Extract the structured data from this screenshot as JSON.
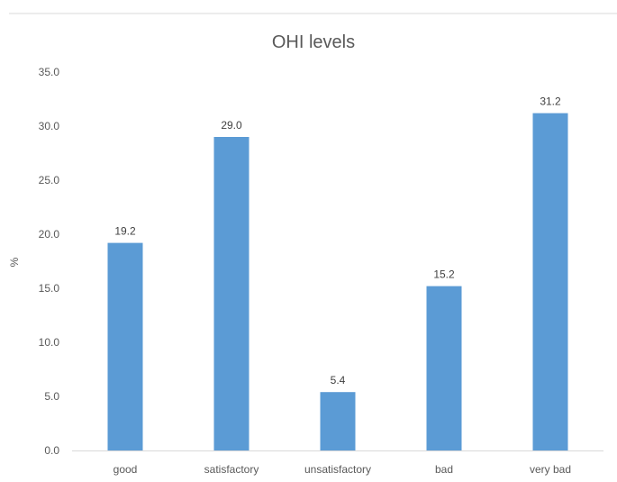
{
  "chart_data": {
    "type": "bar",
    "title": "OHI levels",
    "xlabel": "",
    "ylabel": "%",
    "categories": [
      "good",
      "satisfactory",
      "unsatisfactory",
      "bad",
      "very bad"
    ],
    "values": [
      19.2,
      29.0,
      5.4,
      15.2,
      31.2
    ],
    "value_labels": [
      "19.2",
      "29.0",
      "5.4",
      "15.2",
      "31.2"
    ],
    "ylim": [
      0,
      35
    ],
    "yticks": [
      "0.0",
      "5.0",
      "10.0",
      "15.0",
      "20.0",
      "25.0",
      "30.0",
      "35.0"
    ],
    "grid": false,
    "legend": "none",
    "bar_color": "#5b9bd5",
    "axis_color": "#d9d9d9",
    "text_color": "#595959"
  }
}
